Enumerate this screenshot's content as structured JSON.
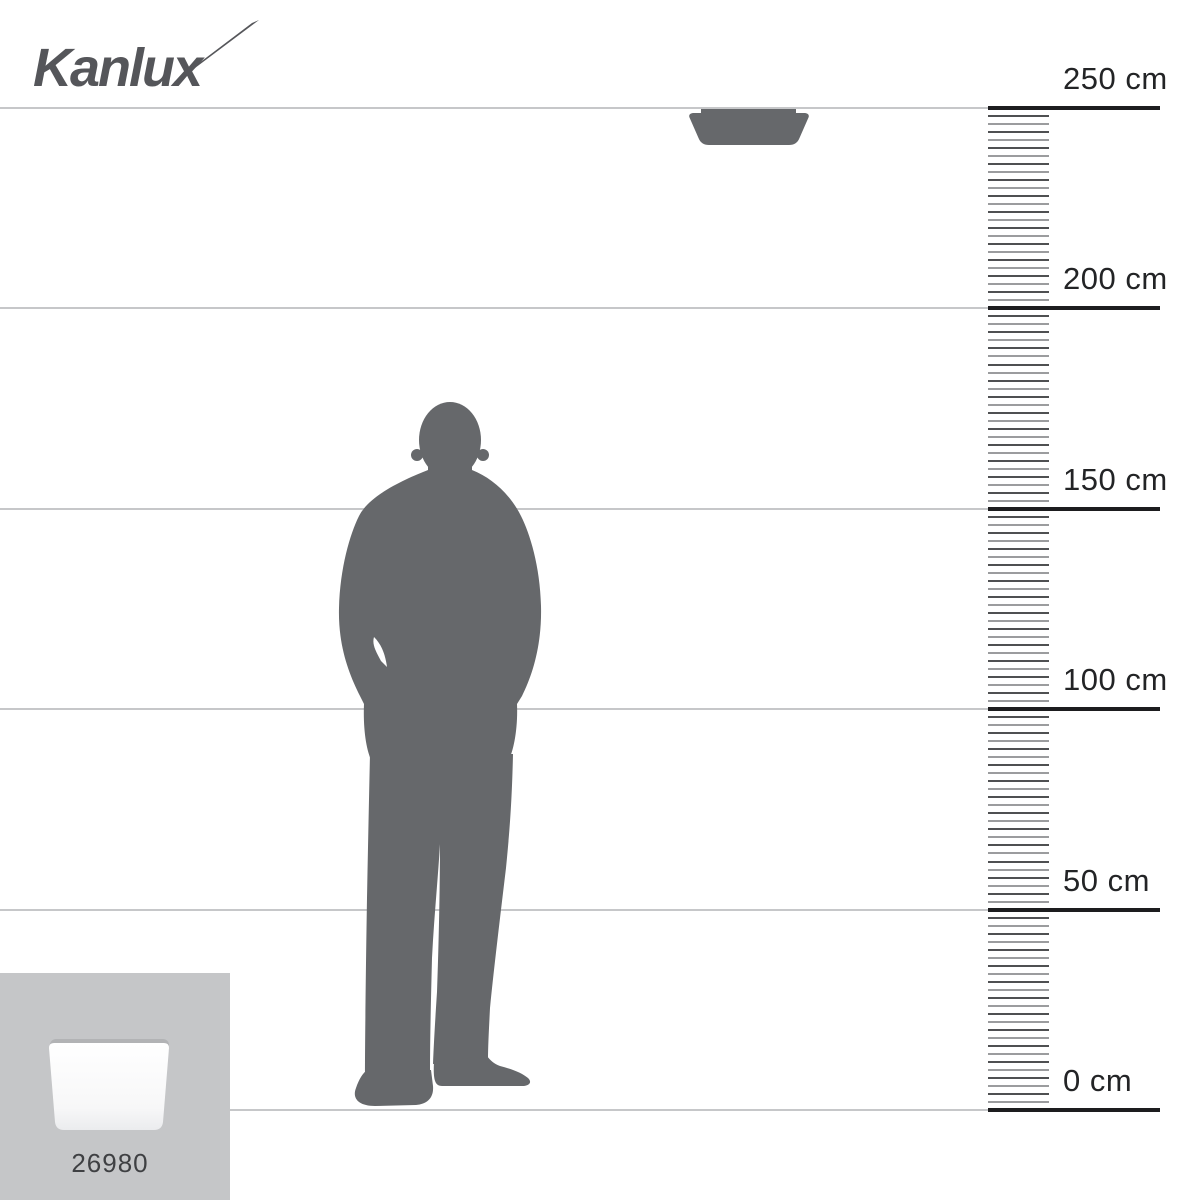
{
  "logo": {
    "text": "Kanlux"
  },
  "ruler": {
    "orientation": "vertical-right",
    "unit": "cm",
    "unit_labels": [
      "250 cm",
      "200 cm",
      "150 cm",
      "100 cm",
      "50 cm",
      "0 cm"
    ],
    "major_values_cm": [
      250,
      200,
      150,
      100,
      50,
      0
    ],
    "minor_tick_step_cm": 2,
    "minor_ticks_per_section": 24
  },
  "scene": {
    "ceiling_lamp_icon": "ceiling-mounted-lamp-silhouette",
    "person_icon": "standing-man-silhouette"
  },
  "product": {
    "code": "26980",
    "thumbnail_icon": "square-ceiling-lamp"
  },
  "colors": {
    "silhouette": "#66686b",
    "gridline": "#c6c7c9",
    "ruler_major_line": "#1d1d1f",
    "tick_dark": "#4f5052",
    "tick_light": "#9b9c9e",
    "label_text": "#232426",
    "logo_text": "#55565a",
    "panel_background": "#c5c6c8",
    "product_code_text": "#3f4043",
    "thumb_rim": "#b2b3b5"
  }
}
